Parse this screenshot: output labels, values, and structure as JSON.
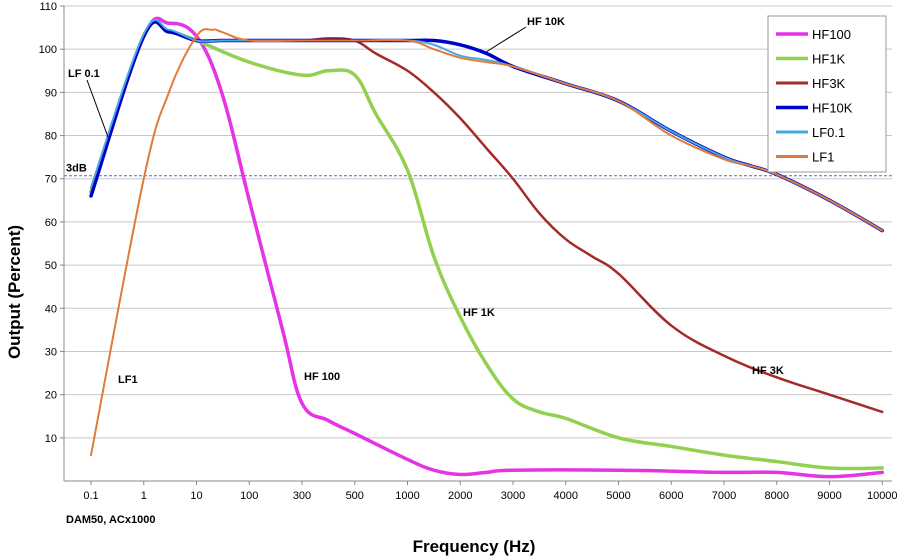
{
  "chart_data": {
    "type": "line",
    "xlabel": "Frequency (Hz)",
    "ylabel": "Output (Percent)",
    "footnote": "DAM50, ACx1000",
    "x_categories": [
      "0.1",
      "1",
      "10",
      "100",
      "300",
      "500",
      "1000",
      "2000",
      "3000",
      "4000",
      "5000",
      "6000",
      "7000",
      "8000",
      "9000",
      "10000"
    ],
    "ylim": [
      0,
      110
    ],
    "yticks": [
      10,
      20,
      30,
      40,
      50,
      60,
      70,
      80,
      90,
      100,
      110
    ],
    "grid": true,
    "legend_position": "top-right",
    "reference_line": {
      "label": "3dB",
      "y": 70.7
    },
    "annotations": [
      {
        "text": "HF 10K",
        "x": 1400,
        "y": 106
      },
      {
        "text": "LF 0.1",
        "x": 0.1,
        "y": 90
      },
      {
        "text": "LF1",
        "x": 1,
        "y": 23
      },
      {
        "text": "HF 100",
        "x": 300,
        "y": 24
      },
      {
        "text": "HF 1K",
        "x": 2000,
        "y": 39
      },
      {
        "text": "HF 3K",
        "x": 7500,
        "y": 26
      }
    ],
    "series": [
      {
        "name": "HF100",
        "color": "#e633e6",
        "width": 3.5,
        "x": [
          0.1,
          1,
          3,
          10,
          30,
          100,
          200,
          300,
          400,
          500,
          1000,
          1500,
          2000,
          2500,
          3000,
          5000,
          7000,
          8000,
          9000,
          10000
        ],
        "y": [
          67,
          103,
          106,
          103,
          90,
          65,
          35,
          18,
          14,
          11,
          5,
          2.5,
          1.5,
          2,
          2.5,
          2.5,
          2,
          2,
          1,
          2
        ]
      },
      {
        "name": "HF1K",
        "color": "#92d050",
        "width": 3.5,
        "x": [
          0.1,
          1,
          3,
          10,
          100,
          300,
          400,
          500,
          700,
          1000,
          1500,
          2000,
          2500,
          3000,
          3500,
          4000,
          5000,
          6000,
          7000,
          8000,
          9000,
          10000
        ],
        "y": [
          67,
          103,
          104,
          102,
          97,
          94,
          95,
          94,
          85,
          72,
          52,
          38,
          27,
          19,
          16,
          14.5,
          10,
          8,
          6,
          4.5,
          3,
          3
        ]
      },
      {
        "name": "HF3K",
        "color": "#a52a2a",
        "width": 2.5,
        "x": [
          0.1,
          1,
          3,
          10,
          30,
          100,
          300,
          400,
          500,
          700,
          1000,
          1500,
          2000,
          2500,
          3000,
          3500,
          4000,
          4500,
          5000,
          6000,
          7000,
          8000,
          9000,
          10000
        ],
        "y": [
          66,
          103,
          104,
          102,
          102,
          102,
          102,
          102.5,
          102,
          99,
          95,
          90,
          84,
          77,
          70,
          62,
          56,
          52,
          48,
          36,
          29,
          24,
          20,
          16
        ]
      },
      {
        "name": "HF10K",
        "color": "#0000cc",
        "width": 3.5,
        "x": [
          0.1,
          1,
          3,
          10,
          30,
          100,
          300,
          500,
          1000,
          1500,
          2000,
          2500,
          3000,
          4000,
          5000,
          6000,
          7000,
          7500,
          8000,
          9000,
          10000
        ],
        "y": [
          66,
          103,
          104,
          102,
          102,
          102,
          102,
          102,
          102,
          102,
          101,
          99,
          96,
          92,
          88,
          81,
          75,
          73,
          71,
          65,
          58
        ]
      },
      {
        "name": "LF0.1",
        "color": "#4aa8e0",
        "width": 2,
        "x": [
          0.1,
          1,
          3,
          10,
          30,
          100,
          300,
          500,
          1000,
          1500,
          2000,
          2500,
          3000,
          4000,
          5000,
          6000,
          7000,
          7500,
          8000,
          9000,
          10000
        ],
        "y": [
          68,
          103.5,
          104.5,
          102,
          102,
          102,
          102,
          102,
          102,
          101,
          98.5,
          97.5,
          96,
          92,
          88,
          81,
          75,
          73,
          71,
          65,
          58
        ]
      },
      {
        "name": "LF1",
        "color": "#e07b39",
        "width": 2,
        "x": [
          0.1,
          1,
          3,
          10,
          20,
          30,
          100,
          300,
          500,
          1000,
          1500,
          2000,
          2500,
          3000,
          4000,
          5000,
          6000,
          7000,
          7500,
          8000,
          9000,
          10000
        ],
        "y": [
          6,
          70,
          90,
          103,
          104.5,
          104,
          102,
          102,
          102,
          102,
          100,
          98,
          97,
          96,
          92,
          88,
          80,
          74.5,
          73,
          71,
          65,
          58
        ]
      }
    ]
  }
}
